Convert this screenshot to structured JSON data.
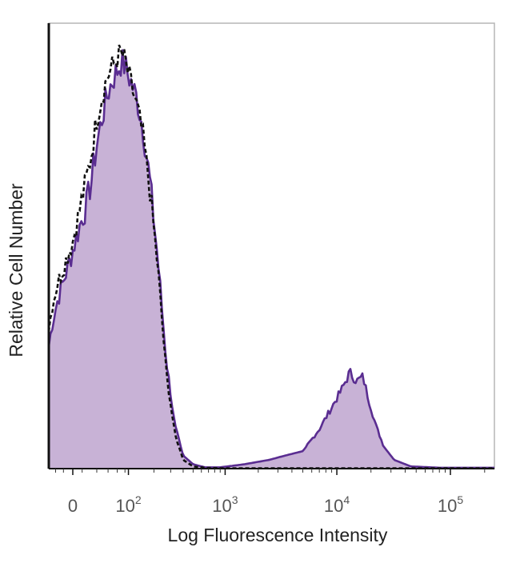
{
  "chart_data": {
    "type": "area",
    "title": "",
    "xlabel": "Log Fluorescence Intensity",
    "ylabel": "Relative Cell Number",
    "x_scale": "biexponential",
    "xlim": [
      -30,
      300000
    ],
    "ylim": [
      0,
      1
    ],
    "y_ticks_labeled": false,
    "grid": false,
    "legend": "none",
    "x_ticks": [
      {
        "value": 0,
        "base": "0",
        "exp": ""
      },
      {
        "value": 100,
        "base": "10",
        "exp": "2"
      },
      {
        "value": 1000,
        "base": "10",
        "exp": "3"
      },
      {
        "value": 10000,
        "base": "10",
        "exp": "4"
      },
      {
        "value": 100000,
        "base": "10",
        "exp": "5"
      }
    ],
    "series": [
      {
        "style": "filled",
        "fill_color": "#c8b2d6",
        "line_color": "#5a2d91",
        "x": [
          -30,
          -25,
          -18,
          -10,
          -5,
          0,
          8,
          15,
          22,
          30,
          40,
          50,
          60,
          70,
          80,
          90,
          100,
          115,
          130,
          150,
          180,
          220,
          270,
          330,
          400,
          500,
          650,
          900,
          1500,
          2500,
          3500,
          5000,
          7000,
          9000,
          11000,
          13000,
          15000,
          17000,
          19000,
          22000,
          26000,
          32000,
          45000,
          80000,
          300000
        ],
        "y": [
          0.28,
          0.33,
          0.38,
          0.43,
          0.46,
          0.5,
          0.56,
          0.6,
          0.66,
          0.74,
          0.81,
          0.86,
          0.89,
          0.91,
          0.93,
          0.92,
          0.9,
          0.87,
          0.84,
          0.78,
          0.66,
          0.48,
          0.25,
          0.1,
          0.03,
          0.01,
          0.003,
          0.003,
          0.01,
          0.02,
          0.03,
          0.04,
          0.09,
          0.14,
          0.18,
          0.22,
          0.2,
          0.21,
          0.16,
          0.1,
          0.05,
          0.02,
          0.005,
          0.002,
          0.002
        ]
      },
      {
        "style": "dashed",
        "line_color": "#111111",
        "x": [
          -30,
          -25,
          -18,
          -10,
          -5,
          0,
          8,
          15,
          22,
          30,
          40,
          50,
          60,
          70,
          80,
          90,
          100,
          115,
          130,
          150,
          180,
          220,
          270,
          330,
          400,
          500,
          650,
          900,
          1500,
          3000,
          10000,
          50000,
          300000
        ],
        "y": [
          0.32,
          0.37,
          0.42,
          0.46,
          0.49,
          0.52,
          0.6,
          0.66,
          0.72,
          0.8,
          0.86,
          0.9,
          0.92,
          0.94,
          0.95,
          0.93,
          0.9,
          0.86,
          0.82,
          0.76,
          0.64,
          0.46,
          0.22,
          0.08,
          0.02,
          0.005,
          0.002,
          0.001,
          0.001,
          0.001,
          0.001,
          0.001,
          0.001
        ]
      }
    ]
  }
}
